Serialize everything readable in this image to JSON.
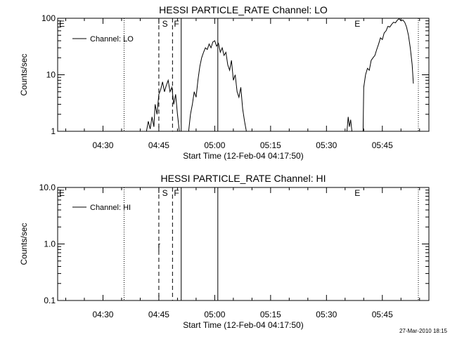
{
  "chart_data": [
    {
      "type": "line",
      "title": "HESSI PARTICLE_RATE Channel: LO",
      "xlabel": "Start Time (12-Feb-04 04:17:50)",
      "ylabel": "Counts/sec",
      "y_scale": "log",
      "ylim": [
        1,
        100
      ],
      "xlim": [
        "04:17:50",
        "05:57:30"
      ],
      "xticks": [
        "04:30",
        "04:45",
        "05:00",
        "05:15",
        "05:30",
        "05:45"
      ],
      "yticks": [
        "1",
        "10",
        "100"
      ],
      "legend": {
        "position": "top-left",
        "entries": [
          "Channel: LO"
        ]
      },
      "markers": {
        "letters": [
          {
            "label": "E",
            "at": "04:17:50"
          },
          {
            "label": "S",
            "at": "04:45:30"
          },
          {
            "label": "F",
            "at": "04:48:40"
          },
          {
            "label": "E",
            "at": "05:37:10"
          }
        ],
        "dotted": [
          "04:35:40",
          "05:54:40"
        ],
        "dashed": [
          "04:45:00",
          "04:48:40"
        ],
        "solid": [
          "04:51:00",
          "05:00:50"
        ]
      },
      "series": [
        {
          "name": "Channel: LO",
          "segments": [
            [
              [
                "04:41:40",
                1
              ],
              [
                "04:42:10",
                1.5
              ],
              [
                "04:42:40",
                1.1
              ],
              [
                "04:43:10",
                1.8
              ],
              [
                "04:43:40",
                1.2
              ],
              [
                "04:44:00",
                3
              ],
              [
                "04:44:30",
                2
              ],
              [
                "04:45:00",
                4.5
              ],
              [
                "04:45:30",
                5.5
              ],
              [
                "04:46:00",
                7.5
              ],
              [
                "04:46:30",
                5
              ],
              [
                "04:47:00",
                6.5
              ],
              [
                "04:47:30",
                8
              ],
              [
                "04:48:00",
                5
              ],
              [
                "04:48:30",
                6
              ],
              [
                "04:49:00",
                3
              ],
              [
                "04:49:30",
                4.5
              ],
              [
                "04:50:00",
                2
              ],
              [
                "04:50:30",
                1
              ]
            ],
            [
              [
                "04:53:00",
                1
              ],
              [
                "04:53:30",
                2
              ],
              [
                "04:54:00",
                3
              ],
              [
                "04:54:30",
                5
              ],
              [
                "04:55:00",
                4
              ],
              [
                "04:55:30",
                8
              ],
              [
                "04:56:00",
                14
              ],
              [
                "04:56:30",
                20
              ],
              [
                "04:57:00",
                25
              ],
              [
                "04:57:30",
                30
              ],
              [
                "04:58:00",
                28
              ],
              [
                "04:58:30",
                35
              ],
              [
                "04:59:00",
                30
              ],
              [
                "04:59:30",
                38
              ],
              [
                "05:00:00",
                40
              ],
              [
                "05:00:30",
                32
              ],
              [
                "05:01:00",
                36
              ],
              [
                "05:01:30",
                25
              ],
              [
                "05:02:00",
                30
              ],
              [
                "05:02:30",
                22
              ],
              [
                "05:03:00",
                25
              ],
              [
                "05:03:30",
                15
              ],
              [
                "05:04:00",
                12
              ],
              [
                "05:04:30",
                18
              ],
              [
                "05:05:00",
                8
              ],
              [
                "05:05:30",
                10
              ],
              [
                "05:06:00",
                5
              ],
              [
                "05:06:30",
                4
              ],
              [
                "05:07:00",
                6
              ],
              [
                "05:07:30",
                2.5
              ],
              [
                "05:08:00",
                1.5
              ],
              [
                "05:08:30",
                1
              ]
            ],
            [
              [
                "05:35:30",
                1
              ],
              [
                "05:35:50",
                1.8
              ],
              [
                "05:36:10",
                1.2
              ],
              [
                "05:36:30",
                1.6
              ],
              [
                "05:36:50",
                1
              ]
            ],
            [
              [
                "05:39:50",
                1
              ],
              [
                "05:40:00",
                6
              ],
              [
                "05:40:30",
                10
              ],
              [
                "05:41:00",
                13
              ],
              [
                "05:41:30",
                12
              ],
              [
                "05:42:00",
                18
              ],
              [
                "05:42:30",
                20
              ],
              [
                "05:43:00",
                22
              ],
              [
                "05:43:30",
                28
              ],
              [
                "05:44:00",
                35
              ],
              [
                "05:44:30",
                45
              ],
              [
                "05:45:00",
                42
              ],
              [
                "05:45:30",
                55
              ],
              [
                "05:46:00",
                60
              ],
              [
                "05:46:30",
                72
              ],
              [
                "05:47:00",
                70
              ],
              [
                "05:47:30",
                78
              ],
              [
                "05:48:00",
                85
              ],
              [
                "05:48:30",
                83
              ],
              [
                "05:49:00",
                92
              ],
              [
                "05:49:30",
                98
              ],
              [
                "05:50:00",
                90
              ],
              [
                "05:50:30",
                93
              ],
              [
                "05:51:00",
                85
              ],
              [
                "05:51:30",
                70
              ],
              [
                "05:52:00",
                50
              ],
              [
                "05:52:30",
                30
              ],
              [
                "05:53:00",
                15
              ],
              [
                "05:53:20",
                7
              ]
            ]
          ]
        }
      ]
    },
    {
      "type": "line",
      "title": "HESSI PARTICLE_RATE Channel: HI",
      "xlabel": "Start Time (12-Feb-04 04:17:50)",
      "ylabel": "Counts/sec",
      "y_scale": "log",
      "ylim": [
        0.1,
        10
      ],
      "xlim": [
        "04:17:50",
        "05:57:30"
      ],
      "xticks": [
        "04:30",
        "04:45",
        "05:00",
        "05:15",
        "05:30",
        "05:45"
      ],
      "yticks": [
        "0.1",
        "1.0",
        "10.0"
      ],
      "legend": {
        "position": "top-left",
        "entries": [
          "Channel: HI"
        ]
      },
      "markers": {
        "letters": [
          {
            "label": "E",
            "at": "04:17:50"
          },
          {
            "label": "S",
            "at": "04:45:30"
          },
          {
            "label": "F",
            "at": "04:48:40"
          },
          {
            "label": "E",
            "at": "05:37:10"
          }
        ],
        "dotted": [
          "04:35:40",
          "05:54:40"
        ],
        "dashed": [
          "04:45:00",
          "04:48:40"
        ],
        "solid": [
          "04:51:00",
          "05:00:50"
        ]
      },
      "series": [
        {
          "name": "Channel: HI",
          "segments": [
            [
              [
                "04:45:00",
                0.75
              ],
              [
                "04:45:00",
                1.0
              ],
              [
                "04:45:20",
                1.0
              ]
            ]
          ]
        }
      ]
    }
  ],
  "footer": {
    "timestamp": "27-Mar-2010 18:15"
  }
}
